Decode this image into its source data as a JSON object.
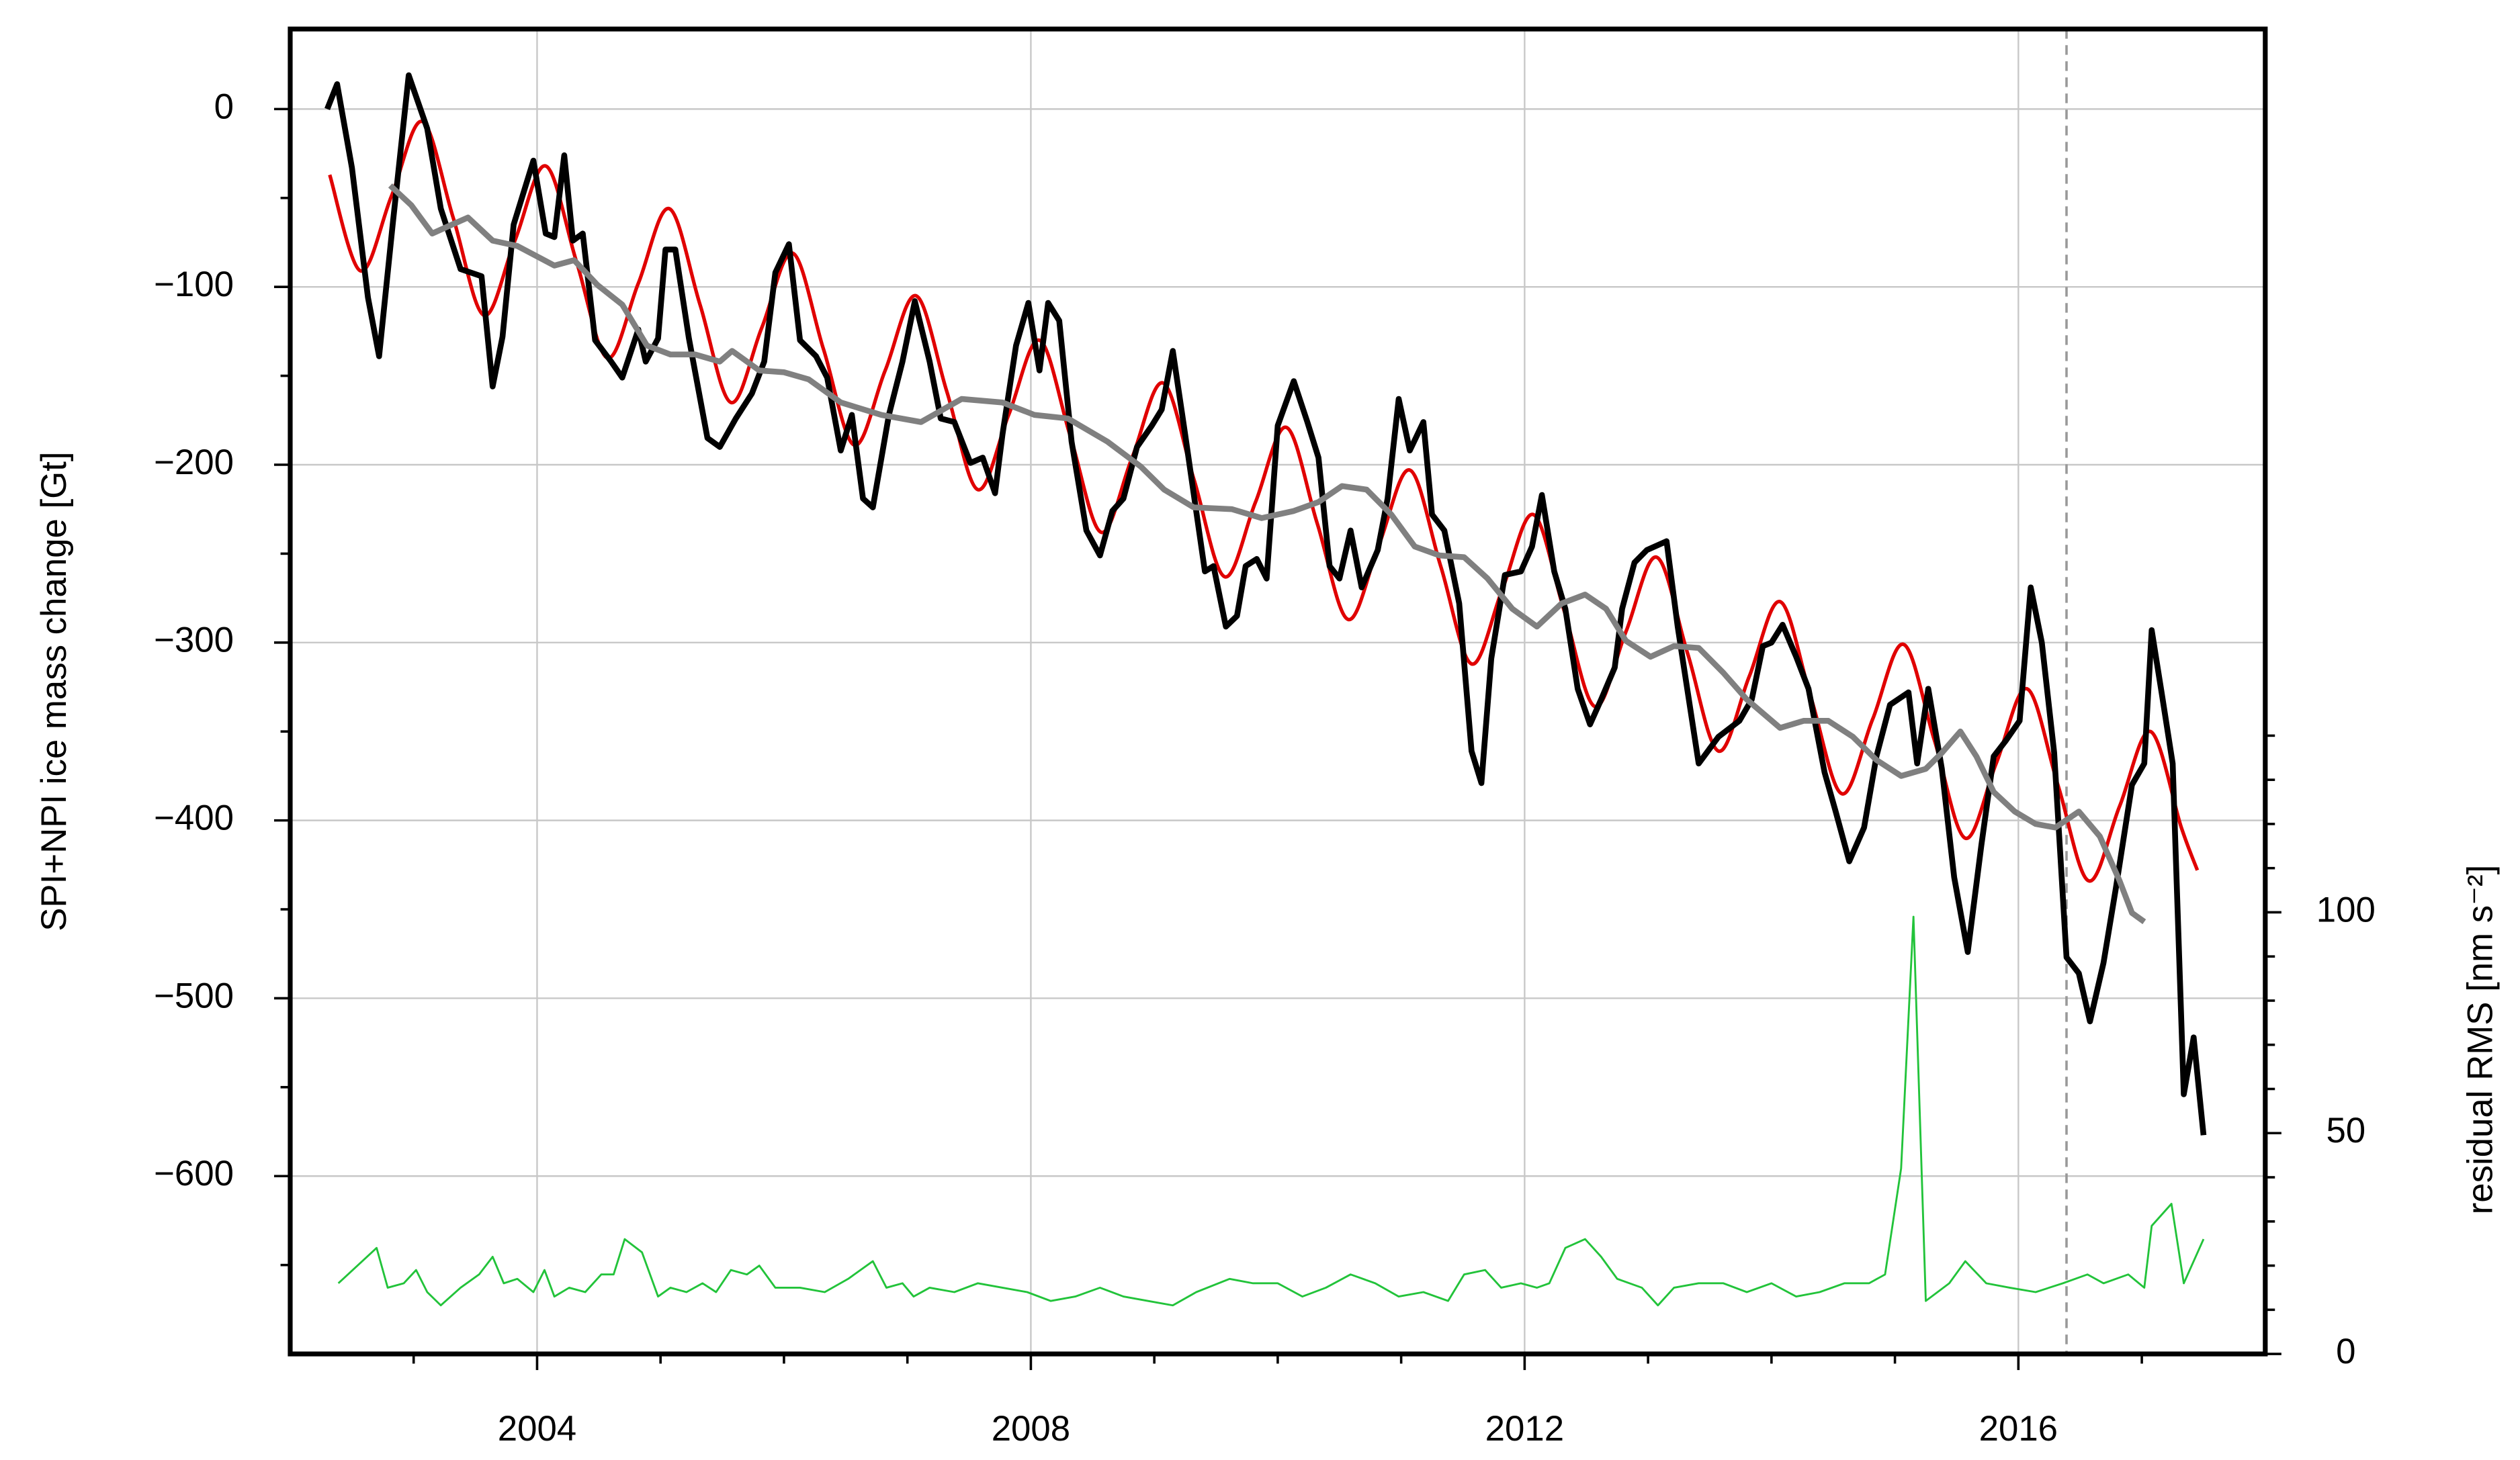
{
  "chart_data": {
    "type": "line",
    "ylabel": "SPI+NPI ice mass change [Gt]",
    "y2label": "residual RMS [nm s⁻²]",
    "xlim": [
      2002,
      2018
    ],
    "xticks": [
      2004,
      2008,
      2012,
      2016
    ],
    "xminorticks": [
      2003,
      2005,
      2006,
      2007,
      2009,
      2010,
      2011,
      2013,
      2014,
      2015,
      2017
    ],
    "ylim": [
      -700,
      45
    ],
    "yticks": [
      0,
      {
        "value": -100,
        "label": "−100"
      },
      {
        "value": -200,
        "label": "−200"
      },
      {
        "value": -300,
        "label": "−300"
      },
      {
        "value": -400,
        "label": "−400"
      },
      {
        "value": -500,
        "label": "−500"
      },
      {
        "value": -600,
        "label": "−600"
      }
    ],
    "yminorticks": [
      -650,
      -550,
      -450,
      -350,
      -250,
      -150,
      -50
    ],
    "y2lim": [
      0,
      300
    ],
    "y2ticks": [
      0,
      50,
      100
    ],
    "y2minorticks": [
      10,
      20,
      30,
      40,
      60,
      70,
      80,
      90,
      110,
      120,
      130,
      140
    ],
    "grid": true,
    "vline": 2016.39,
    "series": [
      {
        "color": "#e00000",
        "smooth": true,
        "x": [
          2002.32,
          2002.57,
          2002.82,
          2003.07,
          2003.32,
          2003.57,
          2003.82,
          2004.07,
          2004.32,
          2004.57,
          2004.82,
          2005.07,
          2005.32,
          2005.57,
          2005.82,
          2006.07,
          2006.32,
          2006.57,
          2006.82,
          2007.07,
          2007.32,
          2007.57,
          2007.82,
          2008.07,
          2008.32,
          2008.57,
          2008.82,
          2009.07,
          2009.32,
          2009.57,
          2009.82,
          2010.07,
          2010.32,
          2010.57,
          2010.82,
          2011.07,
          2011.32,
          2011.57,
          2011.82,
          2012.07,
          2012.32,
          2012.57,
          2012.82,
          2013.07,
          2013.32,
          2013.57,
          2013.82,
          2014.07,
          2014.32,
          2014.57,
          2014.82,
          2015.07,
          2015.32,
          2015.57,
          2015.82,
          2016.07,
          2016.32,
          2016.57,
          2016.82,
          2017.07,
          2017.32,
          2017.45
        ],
        "values": [
          -37,
          -91,
          -49,
          -7,
          -61,
          -116,
          -74,
          -32,
          -86,
          -140,
          -98,
          -56,
          -110,
          -165,
          -123,
          -81,
          -135,
          -189,
          -147,
          -105,
          -159,
          -214,
          -172,
          -130,
          -184,
          -238,
          -196,
          -154,
          -208,
          -263,
          -221,
          -179,
          -233,
          -287,
          -245,
          -203,
          -257,
          -312,
          -270,
          -228,
          -282,
          -336,
          -294,
          -252,
          -306,
          -361,
          -319,
          -277,
          -331,
          -385,
          -343,
          -301,
          -355,
          -410,
          -368,
          -326,
          -380,
          -434,
          -392,
          -350,
          -404,
          -428
        ]
      },
      {
        "color": "#000000",
        "x": [
          2002.3,
          2002.38,
          2002.5,
          2002.63,
          2002.72,
          2002.83,
          2002.96,
          2003.11,
          2003.22,
          2003.38,
          2003.55,
          2003.64,
          2003.72,
          2003.81,
          2003.97,
          2004.07,
          2004.14,
          2004.22,
          2004.29,
          2004.37,
          2004.47,
          2004.6,
          2004.69,
          2004.82,
          2004.88,
          2004.98,
          2005.04,
          2005.12,
          2005.23,
          2005.38,
          2005.48,
          2005.61,
          2005.74,
          2005.84,
          2005.93,
          2006.04,
          2006.13,
          2006.26,
          2006.35,
          2006.46,
          2006.55,
          2006.64,
          2006.72,
          2006.85,
          2006.96,
          2007.06,
          2007.18,
          2007.27,
          2007.38,
          2007.51,
          2007.61,
          2007.71,
          2007.77,
          2007.88,
          2007.98,
          2008.07,
          2008.14,
          2008.23,
          2008.33,
          2008.45,
          2008.56,
          2008.66,
          2008.75,
          2008.86,
          2008.98,
          2009.06,
          2009.15,
          2009.25,
          2009.41,
          2009.48,
          2009.58,
          2009.67,
          2009.74,
          2009.83,
          2009.91,
          2010.0,
          2010.13,
          2010.24,
          2010.33,
          2010.42,
          2010.5,
          2010.59,
          2010.68,
          2010.81,
          2010.89,
          2010.98,
          2011.07,
          2011.18,
          2011.25,
          2011.35,
          2011.47,
          2011.57,
          2011.65,
          2011.73,
          2011.84,
          2011.97,
          2012.06,
          2012.14,
          2012.24,
          2012.33,
          2012.43,
          2012.53,
          2012.62,
          2012.73,
          2012.79,
          2012.89,
          2012.99,
          2013.15,
          2013.24,
          2013.41,
          2013.57,
          2013.74,
          2013.84,
          2013.93,
          2014.0,
          2014.09,
          2014.2,
          2014.3,
          2014.43,
          2014.52,
          2014.63,
          2014.75,
          2014.85,
          2014.96,
          2015.11,
          2015.18,
          2015.27,
          2015.38,
          2015.48,
          2015.59,
          2015.7,
          2015.8,
          2015.9,
          2016.01,
          2016.1,
          2016.19,
          2016.29,
          2016.39,
          2016.49,
          2016.58,
          2016.69,
          2016.79,
          2016.92,
          2017.02,
          2017.08,
          2017.16,
          2017.25,
          2017.34,
          2017.42,
          2017.5
        ],
        "values": [
          0,
          14,
          -33,
          -106,
          -139,
          -65,
          19,
          -11,
          -56,
          -90,
          -94,
          -156,
          -128,
          -65,
          -29,
          -70,
          -72,
          -26,
          -74,
          -70,
          -130,
          -142,
          -151,
          -124,
          -142,
          -129,
          -79,
          -79,
          -129,
          -185,
          -190,
          -174,
          -160,
          -142,
          -92,
          -76,
          -130,
          -139,
          -151,
          -192,
          -172,
          -219,
          -224,
          -172,
          -142,
          -108,
          -142,
          -174,
          -176,
          -199,
          -196,
          -216,
          -183,
          -133,
          -109,
          -147,
          -109,
          -119,
          -187,
          -237,
          -251,
          -226,
          -219,
          -190,
          -178,
          -169,
          -136,
          -183,
          -260,
          -257,
          -291,
          -285,
          -257,
          -253,
          -264,
          -178,
          -153,
          -176,
          -196,
          -257,
          -264,
          -237,
          -269,
          -248,
          -219,
          -163,
          -192,
          -176,
          -228,
          -237,
          -278,
          -361,
          -379,
          -309,
          -262,
          -260,
          -246,
          -217,
          -260,
          -281,
          -326,
          -346,
          -332,
          -314,
          -281,
          -255,
          -248,
          -243,
          -291,
          -368,
          -353,
          -344,
          -332,
          -302,
          -300,
          -290,
          -308,
          -326,
          -373,
          -395,
          -423,
          -404,
          -364,
          -335,
          -328,
          -368,
          -326,
          -371,
          -432,
          -474,
          -414,
          -364,
          -355,
          -344,
          -269,
          -300,
          -362,
          -477,
          -486,
          -513,
          -480,
          -438,
          -380,
          -368,
          -293,
          -328,
          -368,
          -554,
          -522,
          -577
        ]
      },
      {
        "color": "#808080",
        "x": [
          2002.81,
          2002.98,
          2003.15,
          2003.31,
          2003.44,
          2003.64,
          2003.84,
          2004.14,
          2004.3,
          2004.49,
          2004.69,
          2004.89,
          2005.08,
          2005.28,
          2005.48,
          2005.58,
          2005.8,
          2006.0,
          2006.2,
          2006.46,
          2006.79,
          2007.11,
          2007.44,
          2007.77,
          2008.03,
          2008.3,
          2008.62,
          2008.89,
          2009.08,
          2009.32,
          2009.63,
          2009.87,
          2010.13,
          2010.33,
          2010.52,
          2010.72,
          2010.92,
          2011.11,
          2011.31,
          2011.51,
          2011.7,
          2011.9,
          2012.1,
          2012.3,
          2012.49,
          2012.66,
          2012.82,
          2013.02,
          2013.21,
          2013.41,
          2013.61,
          2013.8,
          2014.07,
          2014.26,
          2014.46,
          2014.66,
          2014.85,
          2015.05,
          2015.25,
          2015.38,
          2015.53,
          2015.66,
          2015.8,
          2015.97,
          2016.14,
          2016.3,
          2016.49,
          2016.66,
          2016.82,
          2016.92,
          2017.02
        ],
        "values": [
          -43,
          -54,
          -70,
          -65,
          -61,
          -74,
          -77,
          -88,
          -85,
          -99,
          -110,
          -133,
          -138,
          -138,
          -142,
          -136,
          -147,
          -148,
          -152,
          -165,
          -172,
          -176,
          -163,
          -165,
          -172,
          -174,
          -187,
          -201,
          -214,
          -224,
          -225,
          -230,
          -226,
          -221,
          -212,
          -214,
          -228,
          -246,
          -251,
          -252,
          -264,
          -281,
          -291,
          -278,
          -273,
          -281,
          -299,
          -308,
          -302,
          -303,
          -317,
          -332,
          -348,
          -344,
          -344,
          -353,
          -366,
          -375,
          -371,
          -362,
          -350,
          -364,
          -384,
          -395,
          -402,
          -404,
          -395,
          -409,
          -434,
          -452,
          -457
        ]
      },
      {
        "color": "#22c33a",
        "axis": "y2",
        "x": [
          2002.39,
          2002.7,
          2002.79,
          2002.92,
          2003.02,
          2003.11,
          2003.22,
          2003.38,
          2003.53,
          2003.64,
          2003.73,
          2003.84,
          2003.97,
          2004.06,
          2004.14,
          2004.26,
          2004.39,
          2004.52,
          2004.62,
          2004.71,
          2004.85,
          2004.98,
          2005.08,
          2005.21,
          2005.34,
          2005.45,
          2005.57,
          2005.7,
          2005.8,
          2005.93,
          2006.13,
          2006.33,
          2006.52,
          2006.72,
          2006.83,
          2006.96,
          2007.05,
          2007.18,
          2007.38,
          2007.57,
          2007.77,
          2007.97,
          2008.16,
          2008.36,
          2008.56,
          2008.75,
          2008.95,
          2009.15,
          2009.34,
          2009.61,
          2009.8,
          2010.0,
          2010.2,
          2010.39,
          2010.59,
          2010.79,
          2010.98,
          2011.18,
          2011.38,
          2011.51,
          2011.68,
          2011.81,
          2011.97,
          2012.1,
          2012.2,
          2012.33,
          2012.49,
          2012.62,
          2012.75,
          2012.95,
          2013.08,
          2013.21,
          2013.41,
          2013.61,
          2013.8,
          2014.0,
          2014.2,
          2014.39,
          2014.59,
          2014.79,
          2014.92,
          2015.05,
          2015.15,
          2015.25,
          2015.44,
          2015.57,
          2015.74,
          2015.93,
          2016.14,
          2016.36,
          2016.56,
          2016.69,
          2016.89,
          2017.02,
          2017.08,
          2017.24,
          2017.34,
          2017.5
        ],
        "values": [
          16,
          24,
          15,
          16,
          19,
          14,
          11,
          15,
          18,
          22,
          16,
          17,
          14,
          19,
          13,
          15,
          14,
          18,
          18,
          26,
          23,
          13,
          15,
          14,
          16,
          14,
          19,
          18,
          20,
          15,
          15,
          14,
          17,
          21,
          15,
          16,
          13,
          15,
          14,
          16,
          15,
          14,
          12,
          13,
          15,
          13,
          12,
          11,
          14,
          17,
          16,
          16,
          13,
          15,
          18,
          16,
          13,
          14,
          12,
          18,
          19,
          15,
          16,
          15,
          16,
          24,
          26,
          22,
          17,
          15,
          11,
          15,
          16,
          16,
          14,
          16,
          13,
          14,
          16,
          16,
          18,
          42,
          99,
          12,
          16,
          21,
          16,
          15,
          14,
          16,
          18,
          16,
          18,
          15,
          29,
          34,
          16,
          26
        ]
      }
    ]
  }
}
